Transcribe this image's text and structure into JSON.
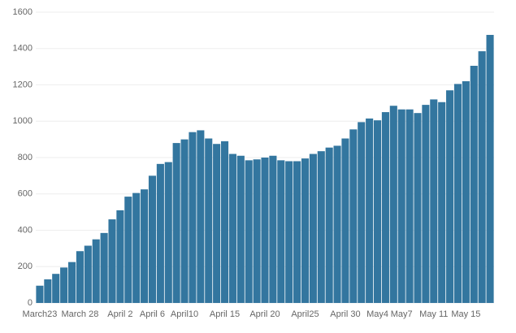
{
  "chart_data": {
    "type": "bar",
    "categories": [
      "March23",
      null,
      null,
      null,
      null,
      "March 28",
      null,
      null,
      null,
      null,
      "April 2",
      null,
      null,
      null,
      "April 6",
      null,
      null,
      null,
      "April10",
      null,
      null,
      null,
      null,
      "April 15",
      null,
      null,
      null,
      null,
      "April 20",
      null,
      null,
      null,
      null,
      "April25",
      null,
      null,
      null,
      null,
      "April 30",
      null,
      null,
      null,
      "May4",
      null,
      null,
      "May7",
      null,
      null,
      null,
      "May 11",
      null,
      null,
      null,
      "May 15",
      null,
      null,
      null
    ],
    "values": [
      95,
      130,
      160,
      195,
      225,
      285,
      315,
      350,
      385,
      460,
      510,
      585,
      605,
      625,
      700,
      765,
      775,
      880,
      900,
      940,
      950,
      905,
      875,
      890,
      820,
      810,
      785,
      790,
      800,
      810,
      785,
      780,
      780,
      795,
      820,
      835,
      855,
      865,
      905,
      955,
      995,
      1015,
      1005,
      1050,
      1085,
      1065,
      1065,
      1045,
      1090,
      1120,
      1105,
      1170,
      1205,
      1220,
      1305,
      1385,
      1475
    ],
    "color": "#33769f",
    "ylim": [
      0,
      1600
    ],
    "yticks": [
      0,
      200,
      400,
      600,
      800,
      1000,
      1200,
      1400,
      1600
    ],
    "grid": true
  }
}
